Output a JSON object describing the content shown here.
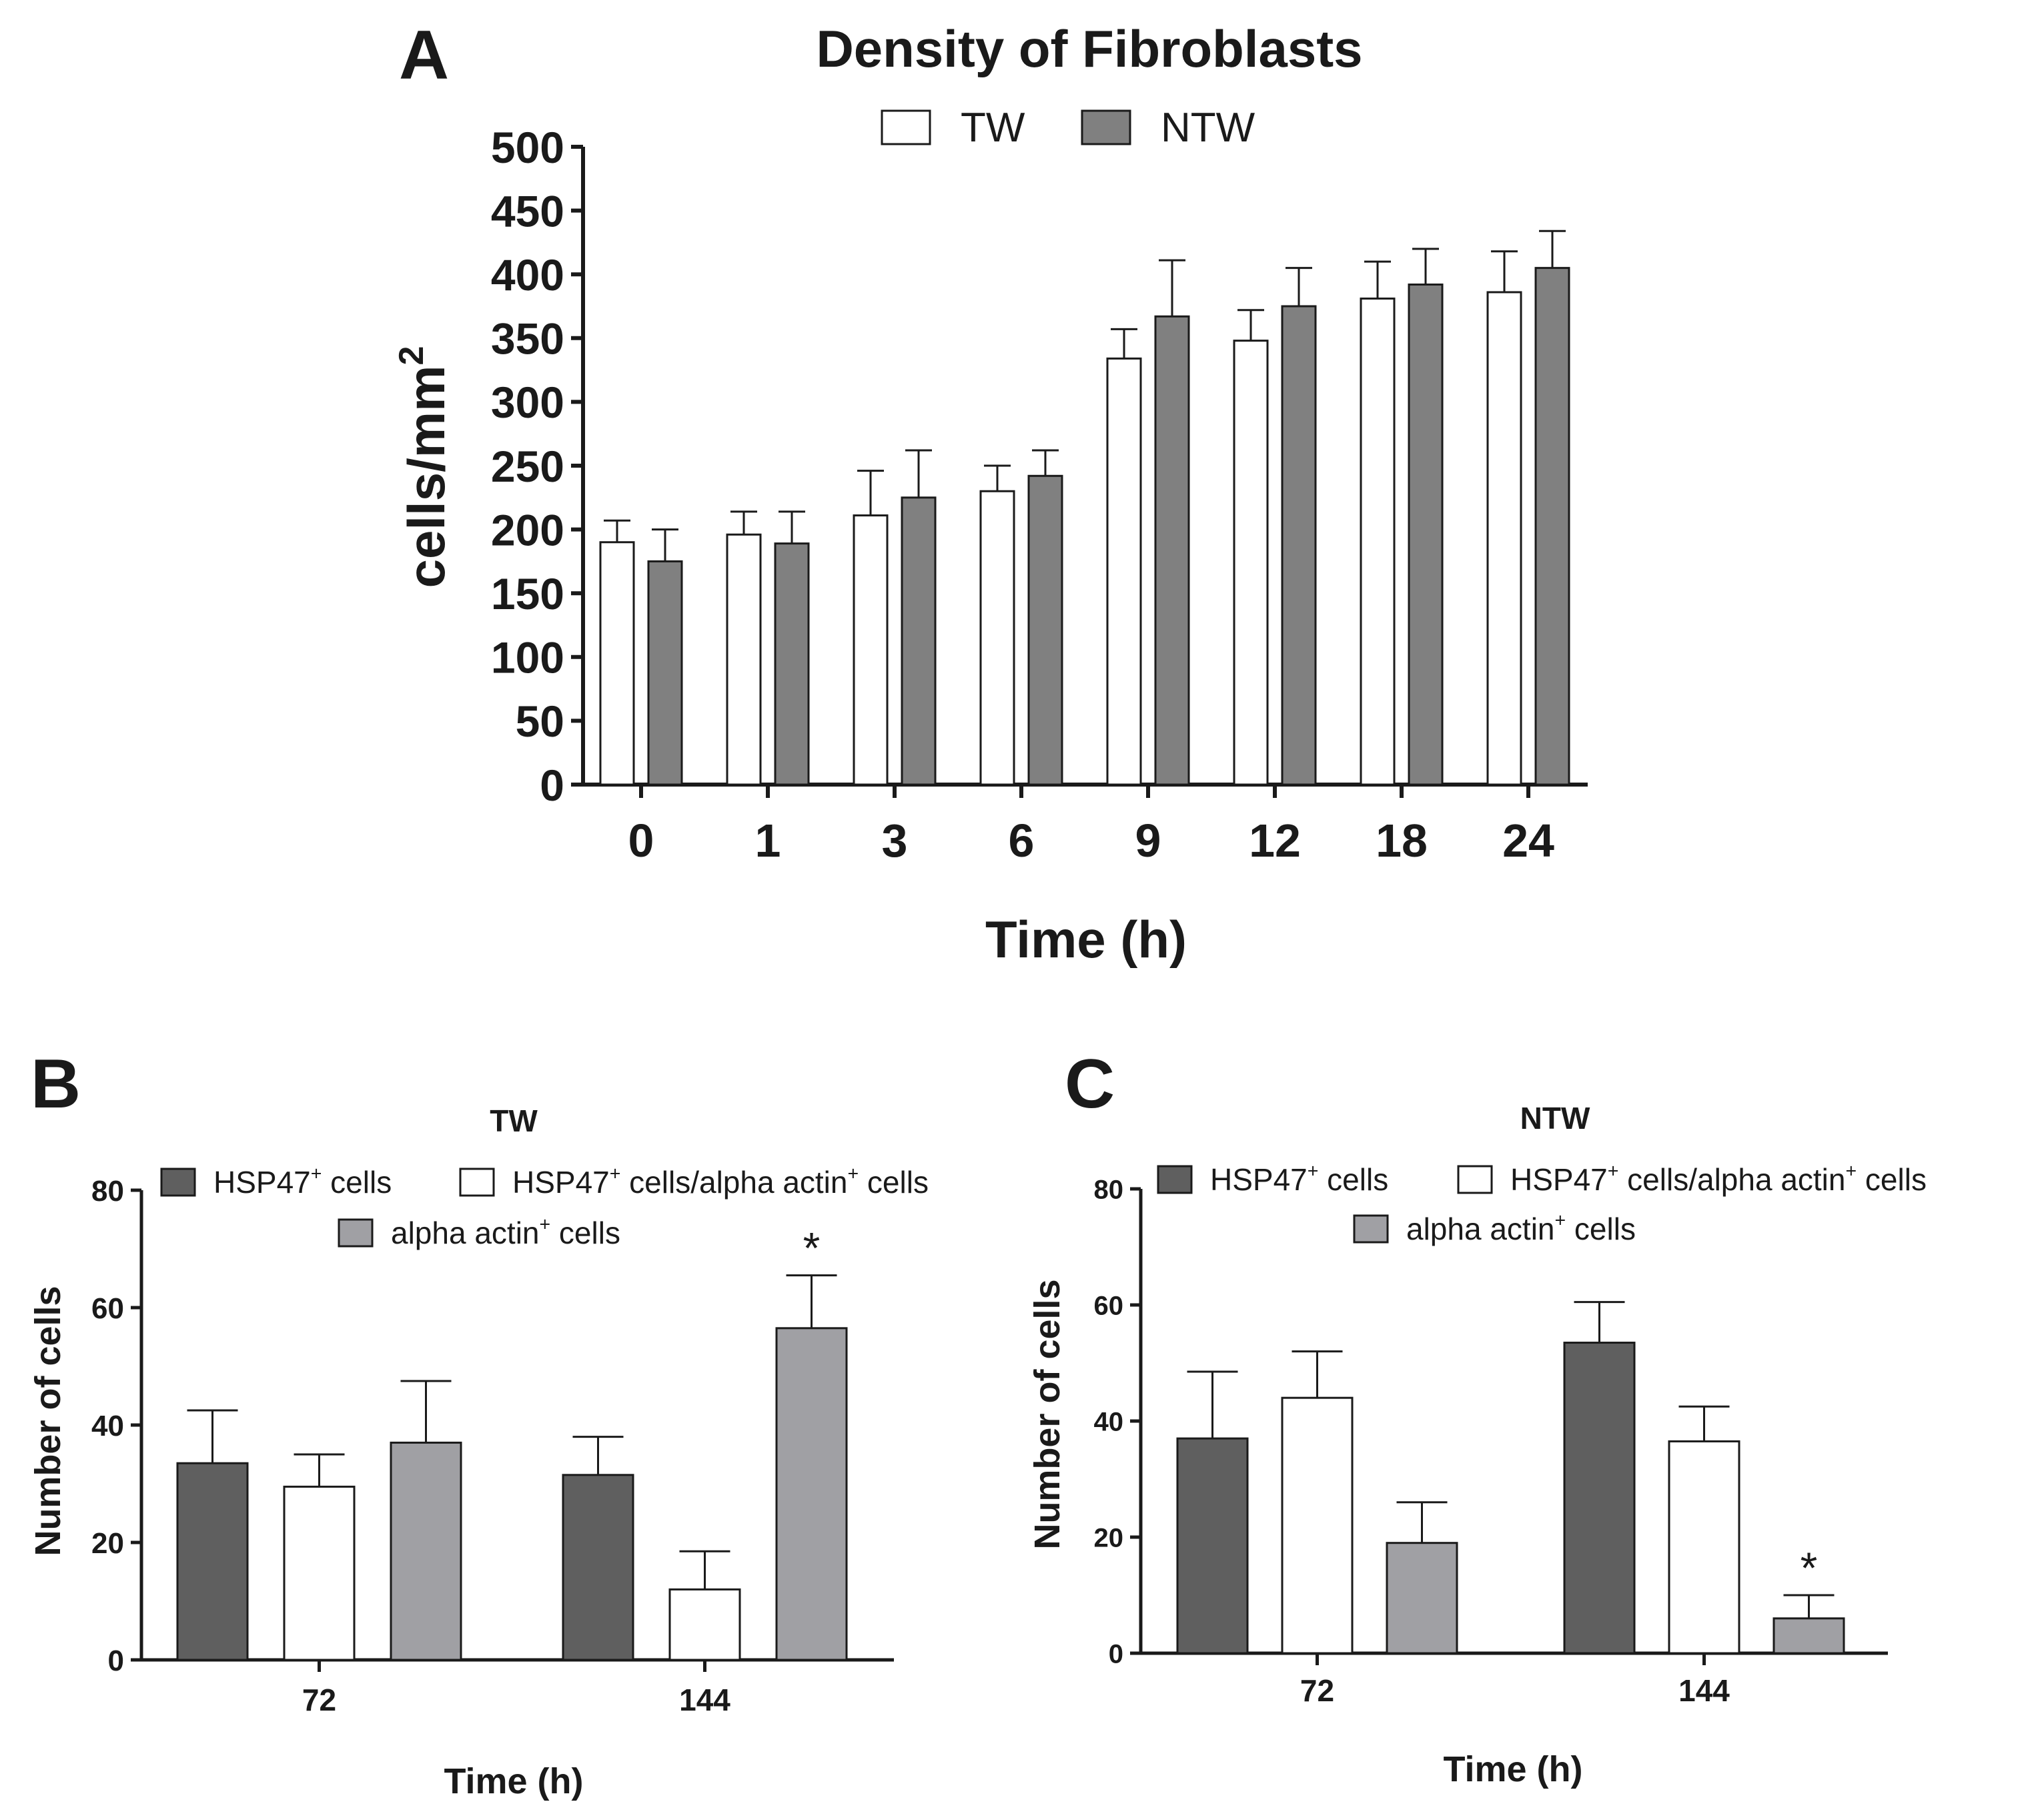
{
  "chart_data": [
    {
      "panel": "A",
      "type": "bar",
      "title": "Density of Fibroblasts",
      "xlabel": "Time (h)",
      "ylabel": "cells/mm",
      "ylabel_superscript": "2",
      "ylim": [
        0,
        500
      ],
      "yticks": [
        "0",
        "50",
        "100",
        "150",
        "200",
        "250",
        "300",
        "350",
        "400",
        "450",
        "500"
      ],
      "categories": [
        "0",
        "1",
        "3",
        "6",
        "9",
        "12",
        "18",
        "24"
      ],
      "legend_position": "top",
      "series": [
        {
          "name": "TW",
          "color": "#ffffff",
          "values": [
            190,
            196,
            211,
            230,
            334,
            348,
            381,
            386
          ],
          "errors": [
            17,
            18,
            35,
            20,
            23,
            24,
            29,
            32
          ]
        },
        {
          "name": "NTW",
          "color": "#808080",
          "values": [
            175,
            189,
            225,
            242,
            367,
            375,
            392,
            405
          ],
          "errors": [
            25,
            25,
            37,
            20,
            44,
            30,
            28,
            29
          ]
        }
      ]
    },
    {
      "panel": "B",
      "type": "bar",
      "title": "TW",
      "xlabel": "Time (h)",
      "ylabel": "Number of cells",
      "ylim": [
        0,
        80
      ],
      "yticks": [
        "0",
        "20",
        "40",
        "60",
        "80"
      ],
      "categories": [
        "72",
        "144"
      ],
      "legend_position": "top",
      "annotations": [
        {
          "text": "*",
          "category": "144",
          "series": "alpha actin+ cells"
        }
      ],
      "series": [
        {
          "name": "HSP47+ cells",
          "label": "HSP47",
          "label_sup": "+",
          "label_rest": " cells",
          "color": "#5f5f5f",
          "values": [
            33.5,
            31.5
          ],
          "errors": [
            9,
            6.5
          ]
        },
        {
          "name": "HSP47+ cells/alpha actin+ cells",
          "label": "HSP47",
          "label_sup": "+",
          "label_rest": " cells/alpha actin",
          "label_sup2": "+",
          "label_rest2": " cells",
          "color": "#ffffff",
          "values": [
            29.5,
            12
          ],
          "errors": [
            5.5,
            6.5
          ]
        },
        {
          "name": "alpha actin+ cells",
          "label": "alpha actin",
          "label_sup": "+",
          "label_rest": " cells",
          "color": "#a0a0a4",
          "values": [
            37,
            56.5
          ],
          "errors": [
            10.5,
            9
          ]
        }
      ]
    },
    {
      "panel": "C",
      "type": "bar",
      "title": "NTW",
      "xlabel": "Time (h)",
      "ylabel": "Number of cells",
      "ylim": [
        0,
        80
      ],
      "yticks": [
        "0",
        "20",
        "40",
        "60",
        "80"
      ],
      "categories": [
        "72",
        "144"
      ],
      "legend_position": "top",
      "annotations": [
        {
          "text": "*",
          "category": "144",
          "series": "alpha actin+ cells"
        }
      ],
      "series": [
        {
          "name": "HSP47+ cells",
          "label": "HSP47",
          "label_sup": "+",
          "label_rest": " cells",
          "color": "#5f5f5f",
          "values": [
            37,
            53.5
          ],
          "errors": [
            11.5,
            7
          ]
        },
        {
          "name": "HSP47+ cells/alpha actin+ cells",
          "label": "HSP47",
          "label_sup": "+",
          "label_rest": " cells/alpha actin",
          "label_sup2": "+",
          "label_rest2": " cells",
          "color": "#ffffff",
          "values": [
            44,
            36.5
          ],
          "errors": [
            8,
            6
          ]
        },
        {
          "name": "alpha actin+ cells",
          "label": "alpha actin",
          "label_sup": "+",
          "label_rest": " cells",
          "color": "#a0a0a4",
          "values": [
            19,
            6
          ],
          "errors": [
            7,
            4
          ]
        }
      ]
    }
  ]
}
